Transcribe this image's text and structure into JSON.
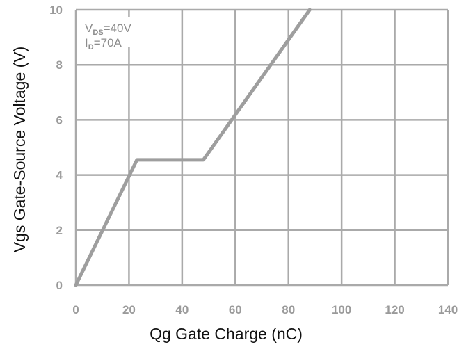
{
  "chart_data": {
    "type": "line",
    "xlabel": "Qg Gate Charge (nC)",
    "ylabel": "Vgs Gate-Source Voltage (V)",
    "xlim": [
      0,
      140
    ],
    "ylim": [
      0,
      10
    ],
    "x_ticks": [
      0,
      20,
      40,
      60,
      80,
      100,
      120,
      140
    ],
    "y_ticks": [
      0,
      2,
      4,
      6,
      8,
      10
    ],
    "grid": true,
    "series": [
      {
        "x": [
          0,
          23,
          48,
          88
        ],
        "y": [
          0,
          4.55,
          4.55,
          10
        ]
      }
    ],
    "annotations": [
      {
        "main": "V",
        "sub": "DS",
        "rest": "=40V"
      },
      {
        "main": "I",
        "sub": "D",
        "rest": "=70A"
      }
    ],
    "colors": {
      "grid": "#aaaaaa",
      "line": "#9e9e9e",
      "tick_text": "#9a9a9a",
      "axis_title": "#111111"
    }
  }
}
